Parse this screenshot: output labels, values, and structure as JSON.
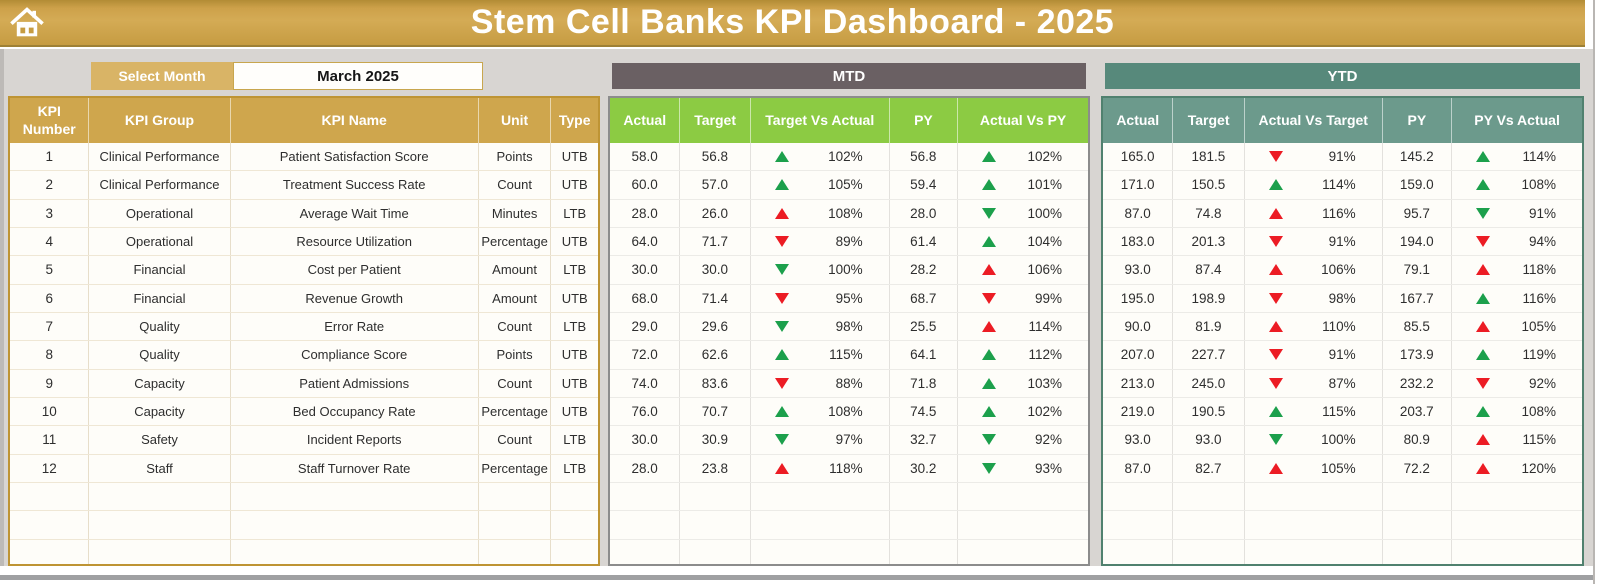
{
  "header": {
    "title": "Stem Cell Banks KPI Dashboard - 2025"
  },
  "controls": {
    "select_month_label": "Select Month",
    "selected_month": "March 2025"
  },
  "info_headers": [
    "KPI Number",
    "KPI Group",
    "KPI Name",
    "Unit",
    "Type"
  ],
  "mtd": {
    "label": "MTD",
    "headers": [
      "Actual",
      "Target",
      "Target Vs Actual",
      "PY",
      "Actual Vs PY"
    ]
  },
  "ytd": {
    "label": "YTD",
    "headers": [
      "Actual",
      "Target",
      "Actual Vs Target",
      "PY",
      "PY Vs Actual"
    ]
  },
  "empty_row_count": 3,
  "colors": {
    "gold_header": "#cfa64d",
    "gold_bar": "#c69c42",
    "select_month_gold": "#d9b466",
    "mtd_bar": "#6a6063",
    "mtd_header_green": "#8ccb43",
    "ytd_bar": "#57897b",
    "ytd_header_teal": "#6c9a8c",
    "trend_up_good_green": "#1ca04c",
    "trend_bad_red": "#ec1c24"
  },
  "rows": [
    {
      "num": "1",
      "group": "Clinical Performance",
      "name": "Patient Satisfaction Score",
      "unit": "Points",
      "type": "UTB",
      "mtd": {
        "actual": "58.0",
        "target": "56.8",
        "tva": {
          "dir": "up",
          "color": "green",
          "pct": "102%"
        },
        "py": "56.8",
        "avpy": {
          "dir": "up",
          "color": "green",
          "pct": "102%"
        }
      },
      "ytd": {
        "actual": "165.0",
        "target": "181.5",
        "avt": {
          "dir": "down",
          "color": "red",
          "pct": "91%"
        },
        "py": "145.2",
        "pva": {
          "dir": "up",
          "color": "green",
          "pct": "114%"
        }
      }
    },
    {
      "num": "2",
      "group": "Clinical Performance",
      "name": "Treatment Success Rate",
      "unit": "Count",
      "type": "UTB",
      "mtd": {
        "actual": "60.0",
        "target": "57.0",
        "tva": {
          "dir": "up",
          "color": "green",
          "pct": "105%"
        },
        "py": "59.4",
        "avpy": {
          "dir": "up",
          "color": "green",
          "pct": "101%"
        }
      },
      "ytd": {
        "actual": "171.0",
        "target": "150.5",
        "avt": {
          "dir": "up",
          "color": "green",
          "pct": "114%"
        },
        "py": "159.0",
        "pva": {
          "dir": "up",
          "color": "green",
          "pct": "108%"
        }
      }
    },
    {
      "num": "3",
      "group": "Operational",
      "name": "Average Wait Time",
      "unit": "Minutes",
      "type": "LTB",
      "mtd": {
        "actual": "28.0",
        "target": "26.0",
        "tva": {
          "dir": "up",
          "color": "red",
          "pct": "108%"
        },
        "py": "28.0",
        "avpy": {
          "dir": "down",
          "color": "green",
          "pct": "100%"
        }
      },
      "ytd": {
        "actual": "87.0",
        "target": "74.8",
        "avt": {
          "dir": "up",
          "color": "red",
          "pct": "116%"
        },
        "py": "95.7",
        "pva": {
          "dir": "down",
          "color": "green",
          "pct": "91%"
        }
      }
    },
    {
      "num": "4",
      "group": "Operational",
      "name": "Resource Utilization",
      "unit": "Percentage",
      "type": "UTB",
      "mtd": {
        "actual": "64.0",
        "target": "71.7",
        "tva": {
          "dir": "down",
          "color": "red",
          "pct": "89%"
        },
        "py": "61.4",
        "avpy": {
          "dir": "up",
          "color": "green",
          "pct": "104%"
        }
      },
      "ytd": {
        "actual": "183.0",
        "target": "201.3",
        "avt": {
          "dir": "down",
          "color": "red",
          "pct": "91%"
        },
        "py": "194.0",
        "pva": {
          "dir": "down",
          "color": "red",
          "pct": "94%"
        }
      }
    },
    {
      "num": "5",
      "group": "Financial",
      "name": "Cost per Patient",
      "unit": "Amount",
      "type": "LTB",
      "mtd": {
        "actual": "30.0",
        "target": "30.0",
        "tva": {
          "dir": "down",
          "color": "green",
          "pct": "100%"
        },
        "py": "28.2",
        "avpy": {
          "dir": "up",
          "color": "red",
          "pct": "106%"
        }
      },
      "ytd": {
        "actual": "93.0",
        "target": "87.4",
        "avt": {
          "dir": "up",
          "color": "red",
          "pct": "106%"
        },
        "py": "79.1",
        "pva": {
          "dir": "up",
          "color": "red",
          "pct": "118%"
        }
      }
    },
    {
      "num": "6",
      "group": "Financial",
      "name": "Revenue Growth",
      "unit": "Amount",
      "type": "UTB",
      "mtd": {
        "actual": "68.0",
        "target": "71.4",
        "tva": {
          "dir": "down",
          "color": "red",
          "pct": "95%"
        },
        "py": "68.7",
        "avpy": {
          "dir": "down",
          "color": "red",
          "pct": "99%"
        }
      },
      "ytd": {
        "actual": "195.0",
        "target": "198.9",
        "avt": {
          "dir": "down",
          "color": "red",
          "pct": "98%"
        },
        "py": "167.7",
        "pva": {
          "dir": "up",
          "color": "green",
          "pct": "116%"
        }
      }
    },
    {
      "num": "7",
      "group": "Quality",
      "name": "Error Rate",
      "unit": "Count",
      "type": "LTB",
      "mtd": {
        "actual": "29.0",
        "target": "29.6",
        "tva": {
          "dir": "down",
          "color": "green",
          "pct": "98%"
        },
        "py": "25.5",
        "avpy": {
          "dir": "up",
          "color": "red",
          "pct": "114%"
        }
      },
      "ytd": {
        "actual": "90.0",
        "target": "81.9",
        "avt": {
          "dir": "up",
          "color": "red",
          "pct": "110%"
        },
        "py": "85.5",
        "pva": {
          "dir": "up",
          "color": "red",
          "pct": "105%"
        }
      }
    },
    {
      "num": "8",
      "group": "Quality",
      "name": "Compliance Score",
      "unit": "Points",
      "type": "UTB",
      "mtd": {
        "actual": "72.0",
        "target": "62.6",
        "tva": {
          "dir": "up",
          "color": "green",
          "pct": "115%"
        },
        "py": "64.1",
        "avpy": {
          "dir": "up",
          "color": "green",
          "pct": "112%"
        }
      },
      "ytd": {
        "actual": "207.0",
        "target": "227.7",
        "avt": {
          "dir": "down",
          "color": "red",
          "pct": "91%"
        },
        "py": "173.9",
        "pva": {
          "dir": "up",
          "color": "green",
          "pct": "119%"
        }
      }
    },
    {
      "num": "9",
      "group": "Capacity",
      "name": "Patient Admissions",
      "unit": "Count",
      "type": "UTB",
      "mtd": {
        "actual": "74.0",
        "target": "83.6",
        "tva": {
          "dir": "down",
          "color": "red",
          "pct": "88%"
        },
        "py": "71.8",
        "avpy": {
          "dir": "up",
          "color": "green",
          "pct": "103%"
        }
      },
      "ytd": {
        "actual": "213.0",
        "target": "245.0",
        "avt": {
          "dir": "down",
          "color": "red",
          "pct": "87%"
        },
        "py": "232.2",
        "pva": {
          "dir": "down",
          "color": "red",
          "pct": "92%"
        }
      }
    },
    {
      "num": "10",
      "group": "Capacity",
      "name": "Bed Occupancy Rate",
      "unit": "Percentage",
      "type": "UTB",
      "mtd": {
        "actual": "76.0",
        "target": "70.7",
        "tva": {
          "dir": "up",
          "color": "green",
          "pct": "108%"
        },
        "py": "74.5",
        "avpy": {
          "dir": "up",
          "color": "green",
          "pct": "102%"
        }
      },
      "ytd": {
        "actual": "219.0",
        "target": "190.5",
        "avt": {
          "dir": "up",
          "color": "green",
          "pct": "115%"
        },
        "py": "203.7",
        "pva": {
          "dir": "up",
          "color": "green",
          "pct": "108%"
        }
      }
    },
    {
      "num": "11",
      "group": "Safety",
      "name": "Incident Reports",
      "unit": "Count",
      "type": "LTB",
      "mtd": {
        "actual": "30.0",
        "target": "30.9",
        "tva": {
          "dir": "down",
          "color": "green",
          "pct": "97%"
        },
        "py": "32.7",
        "avpy": {
          "dir": "down",
          "color": "green",
          "pct": "92%"
        }
      },
      "ytd": {
        "actual": "93.0",
        "target": "93.0",
        "avt": {
          "dir": "down",
          "color": "green",
          "pct": "100%"
        },
        "py": "80.9",
        "pva": {
          "dir": "up",
          "color": "red",
          "pct": "115%"
        }
      }
    },
    {
      "num": "12",
      "group": "Staff",
      "name": "Staff Turnover Rate",
      "unit": "Percentage",
      "type": "LTB",
      "mtd": {
        "actual": "28.0",
        "target": "23.8",
        "tva": {
          "dir": "up",
          "color": "red",
          "pct": "118%"
        },
        "py": "30.2",
        "avpy": {
          "dir": "down",
          "color": "green",
          "pct": "93%"
        }
      },
      "ytd": {
        "actual": "87.0",
        "target": "82.7",
        "avt": {
          "dir": "up",
          "color": "red",
          "pct": "105%"
        },
        "py": "72.2",
        "pva": {
          "dir": "up",
          "color": "red",
          "pct": "120%"
        }
      }
    }
  ]
}
